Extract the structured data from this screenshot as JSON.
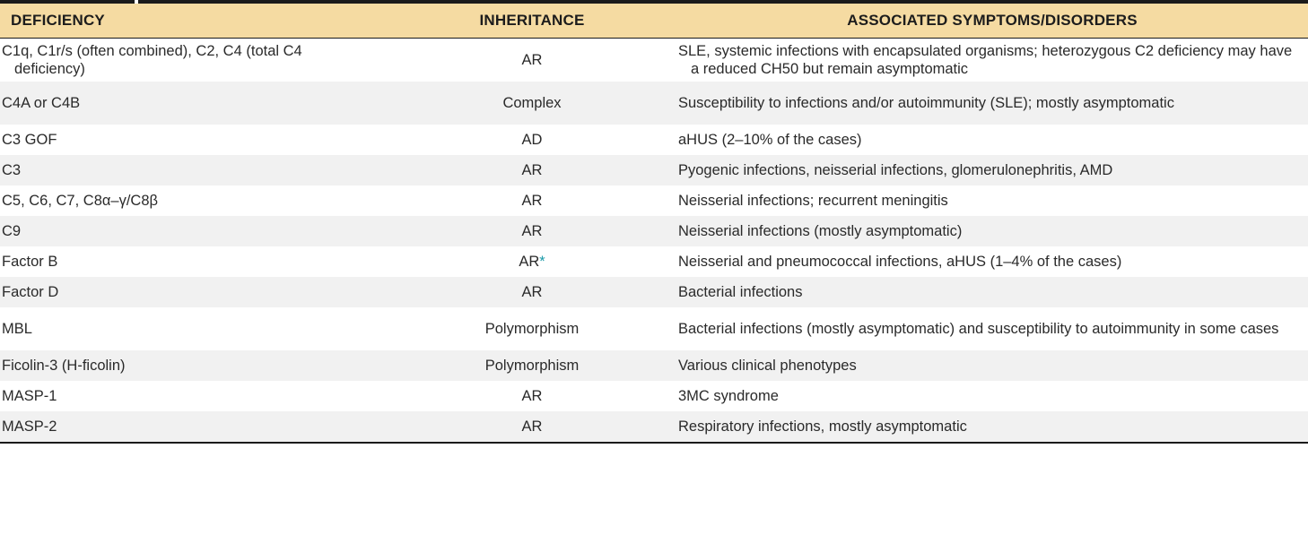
{
  "table": {
    "headers": [
      "DEFICIENCY",
      "INHERITANCE",
      "ASSOCIATED SYMPTOMS/DISORDERS"
    ],
    "rows": [
      {
        "deficiency": "C1q, C1r/s (often combined), C2, C4 (total C4 deficiency)",
        "inheritance": "AR",
        "marker": "",
        "symptoms": "SLE, systemic infections with encapsulated organisms; heterozygous C2 deficiency may have a reduced CH50 but remain asymptomatic"
      },
      {
        "deficiency": "C4A or C4B",
        "inheritance": "Complex",
        "marker": "",
        "symptoms": "Susceptibility to infections and/or autoimmunity (SLE); mostly asymptomatic"
      },
      {
        "deficiency": "C3 GOF",
        "inheritance": "AD",
        "marker": "",
        "symptoms": "aHUS (2–10% of the cases)"
      },
      {
        "deficiency": "C3",
        "inheritance": "AR",
        "marker": "",
        "symptoms": "Pyogenic infections, neisserial infections, glomerulonephritis, AMD"
      },
      {
        "deficiency": "C5, C6, C7, C8α–γ/C8β",
        "inheritance": "AR",
        "marker": "",
        "symptoms": "Neisserial infections; recurrent meningitis"
      },
      {
        "deficiency": "C9",
        "inheritance": "AR",
        "marker": "",
        "symptoms": "Neisserial infections (mostly asymptomatic)"
      },
      {
        "deficiency": "Factor B",
        "inheritance": "AR",
        "marker": "*",
        "symptoms": "Neisserial and pneumococcal infections, aHUS (1–4% of the cases)"
      },
      {
        "deficiency": "Factor D",
        "inheritance": "AR",
        "marker": "",
        "symptoms": "Bacterial infections"
      },
      {
        "deficiency": "MBL",
        "inheritance": "Polymorphism",
        "marker": "",
        "symptoms": "Bacterial infections (mostly asymptomatic) and susceptibility to autoimmunity in some cases"
      },
      {
        "deficiency": "Ficolin-3 (H-ficolin)",
        "inheritance": "Polymorphism",
        "marker": "",
        "symptoms": "Various clinical phenotypes"
      },
      {
        "deficiency": "MASP-1",
        "inheritance": "AR",
        "marker": "",
        "symptoms": "3MC syndrome"
      },
      {
        "deficiency": "MASP-2",
        "inheritance": "AR",
        "marker": "",
        "symptoms": "Respiratory infections, mostly asymptomatic"
      }
    ]
  },
  "colors": {
    "header_bg": "#f5dba2",
    "stripe_bg": "#f1f1f1",
    "asterisk": "#1a9aa8"
  }
}
